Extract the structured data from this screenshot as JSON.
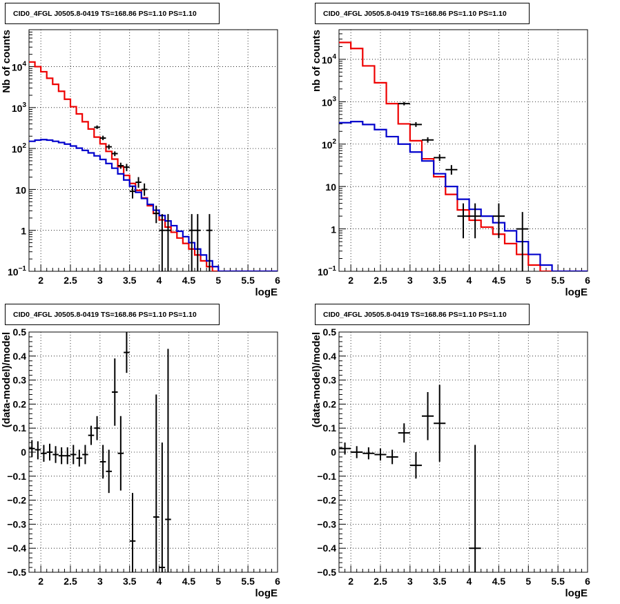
{
  "colors": {
    "data": "#000000",
    "total_model": "#ee0000",
    "source_model": "#0000cc",
    "grid": "#000000",
    "frame": "#000000"
  },
  "chart_data": [
    {
      "panel": "top-left",
      "type": "line",
      "title": "CID0_4FGL J0505.8-0419 TS=168.86 PS=1.10 PS=1.10",
      "xlabel": "logE",
      "ylabel": "Nb of counts",
      "yscale": "log",
      "xlim": [
        1.8,
        6
      ],
      "ylim": [
        0.1,
        80000
      ],
      "grid": true,
      "xticks": [
        2,
        2.5,
        3,
        3.5,
        4,
        4.5,
        5,
        5.5,
        6
      ],
      "xtick_labels": [
        "2",
        "2.5",
        "3",
        "3.5",
        "4",
        "4.5",
        "5",
        "5.5",
        "6"
      ],
      "yticks": [
        0.1,
        1,
        10,
        100,
        1000,
        10000
      ],
      "ytick_labels": [
        {
          "base": "10",
          "exp": "−1"
        },
        {
          "base": "1",
          "exp": ""
        },
        {
          "base": "10",
          "exp": ""
        },
        {
          "base": "10",
          "exp": "2"
        },
        {
          "base": "10",
          "exp": "3"
        },
        {
          "base": "10",
          "exp": "4"
        }
      ],
      "bin_edges": [
        1.8,
        1.9,
        2.0,
        2.1,
        2.2,
        2.3,
        2.4,
        2.5,
        2.6,
        2.7,
        2.8,
        2.9,
        3.0,
        3.1,
        3.2,
        3.3,
        3.4,
        3.5,
        3.6,
        3.7,
        3.8,
        3.9,
        4.0,
        4.1,
        4.2,
        4.3,
        4.4,
        4.5,
        4.6,
        4.7,
        4.8,
        4.9,
        5.0,
        5.1,
        5.2,
        5.3,
        5.4,
        5.5,
        5.6,
        5.7,
        5.8,
        5.9,
        6.0
      ],
      "series": [
        {
          "role": "total_model",
          "values": [
            13000,
            10000,
            7500,
            5200,
            3700,
            2500,
            1600,
            1050,
            700,
            450,
            300,
            190,
            130,
            85,
            55,
            36,
            22,
            14,
            9.5,
            6.2,
            4.0,
            2.6,
            1.8,
            1.2,
            0.9,
            0.65,
            0.48,
            0.35,
            0.25,
            0.18,
            0.13,
            0.1,
            0.1,
            0.1,
            0.1,
            0.1,
            0.1,
            0.1,
            0.1,
            0.1,
            0.1,
            0.1
          ]
        },
        {
          "role": "source_model",
          "values": [
            150,
            160,
            165,
            160,
            150,
            140,
            128,
            115,
            102,
            90,
            78,
            66,
            54,
            43,
            33,
            24,
            17,
            12,
            8.5,
            6.0,
            4.3,
            3.1,
            2.3,
            1.7,
            1.3,
            0.95,
            0.7,
            0.5,
            0.35,
            0.25,
            0.18,
            0.13,
            0.1,
            0.1,
            0.1,
            0.1,
            0.1,
            0.1,
            0.1,
            0.1,
            0.1,
            0.1
          ]
        }
      ],
      "points": [
        {
          "x": 2.95,
          "y": 330,
          "xerr": 0.05,
          "ylo": 300,
          "yhi": 365
        },
        {
          "x": 3.05,
          "y": 180,
          "xerr": 0.05,
          "ylo": 160,
          "yhi": 205
        },
        {
          "x": 3.15,
          "y": 110,
          "xerr": 0.05,
          "ylo": 95,
          "yhi": 125
        },
        {
          "x": 3.25,
          "y": 75,
          "xerr": 0.05,
          "ylo": 65,
          "yhi": 85
        },
        {
          "x": 3.35,
          "y": 38,
          "xerr": 0.05,
          "ylo": 32,
          "yhi": 45
        },
        {
          "x": 3.45,
          "y": 35,
          "xerr": 0.05,
          "ylo": 28,
          "yhi": 42
        },
        {
          "x": 3.55,
          "y": 9,
          "xerr": 0.05,
          "ylo": 6,
          "yhi": 12
        },
        {
          "x": 3.65,
          "y": 15,
          "xerr": 0.05,
          "ylo": 11,
          "yhi": 20
        },
        {
          "x": 3.75,
          "y": 10,
          "xerr": 0.05,
          "ylo": 7,
          "yhi": 14
        },
        {
          "x": 3.95,
          "y": 2.6,
          "xerr": 0.05,
          "ylo": 1.5,
          "yhi": 4
        },
        {
          "x": 4.05,
          "y": 1,
          "xerr": 0.05,
          "ylo": 0.1,
          "yhi": 2.5
        },
        {
          "x": 4.15,
          "y": 1,
          "xerr": 0.05,
          "ylo": 0.1,
          "yhi": 2.5
        },
        {
          "x": 4.55,
          "y": 1,
          "xerr": 0.05,
          "ylo": 0.1,
          "yhi": 2.5
        },
        {
          "x": 4.65,
          "y": 1,
          "xerr": 0.05,
          "ylo": 0.1,
          "yhi": 2.5
        },
        {
          "x": 4.85,
          "y": 1,
          "xerr": 0.05,
          "ylo": 0.1,
          "yhi": 2.5
        }
      ]
    },
    {
      "panel": "top-right",
      "type": "line",
      "title": "CID0_4FGL J0505.8-0419 TS=168.86 PS=1.10 PS=1.10",
      "xlabel": "logE",
      "ylabel": "nb of counts",
      "yscale": "log",
      "xlim": [
        1.8,
        6
      ],
      "ylim": [
        0.1,
        50000
      ],
      "grid": true,
      "xticks": [
        2,
        2.5,
        3,
        3.5,
        4,
        4.5,
        5,
        5.5,
        6
      ],
      "xtick_labels": [
        "2",
        "2.5",
        "3",
        "3.5",
        "4",
        "4.5",
        "5",
        "5.5",
        "6"
      ],
      "yticks": [
        0.1,
        1,
        10,
        100,
        1000,
        10000
      ],
      "ytick_labels": [
        {
          "base": "10",
          "exp": "−1"
        },
        {
          "base": "1",
          "exp": ""
        },
        {
          "base": "10",
          "exp": ""
        },
        {
          "base": "10",
          "exp": "2"
        },
        {
          "base": "10",
          "exp": "3"
        },
        {
          "base": "10",
          "exp": "4"
        }
      ],
      "bin_edges": [
        1.8,
        2.0,
        2.2,
        2.4,
        2.6,
        2.8,
        3.0,
        3.2,
        3.4,
        3.6,
        3.8,
        4.0,
        4.2,
        4.4,
        4.6,
        4.8,
        5.0,
        5.2,
        5.4,
        5.6,
        5.8,
        6.0
      ],
      "series": [
        {
          "role": "total_model",
          "values": [
            25000,
            18000,
            7000,
            2800,
            900,
            300,
            120,
            45,
            17,
            6.5,
            2.8,
            1.6,
            1.1,
            0.75,
            0.45,
            0.25,
            0.14,
            0.1,
            0.1,
            0.1,
            0.1
          ]
        },
        {
          "role": "source_model",
          "values": [
            320,
            340,
            290,
            220,
            150,
            100,
            65,
            40,
            20,
            10,
            5.0,
            2.9,
            2.0,
            1.4,
            0.9,
            0.5,
            0.25,
            0.14,
            0.1,
            0.1,
            0.1
          ]
        }
      ],
      "points": [
        {
          "x": 2.9,
          "y": 900,
          "xerr": 0.1,
          "ylo": 820,
          "yhi": 990
        },
        {
          "x": 3.1,
          "y": 290,
          "xerr": 0.1,
          "ylo": 255,
          "yhi": 330
        },
        {
          "x": 3.3,
          "y": 125,
          "xerr": 0.1,
          "ylo": 108,
          "yhi": 145
        },
        {
          "x": 3.5,
          "y": 48,
          "xerr": 0.1,
          "ylo": 40,
          "yhi": 57
        },
        {
          "x": 3.7,
          "y": 25,
          "xerr": 0.1,
          "ylo": 19,
          "yhi": 32
        },
        {
          "x": 3.9,
          "y": 2,
          "xerr": 0.1,
          "ylo": 0.6,
          "yhi": 4
        },
        {
          "x": 4.1,
          "y": 2,
          "xerr": 0.1,
          "ylo": 0.6,
          "yhi": 4
        },
        {
          "x": 4.5,
          "y": 2,
          "xerr": 0.1,
          "ylo": 0.6,
          "yhi": 4
        },
        {
          "x": 4.9,
          "y": 1,
          "xerr": 0.1,
          "ylo": 0.1,
          "yhi": 2.5
        }
      ]
    },
    {
      "panel": "bottom-left",
      "type": "scatter",
      "title": "CID0_4FGL J0505.8-0419 TS=168.86 PS=1.10 PS=1.10",
      "xlabel": "logE",
      "ylabel": "(data-model)/model",
      "yscale": "linear",
      "xlim": [
        1.8,
        6
      ],
      "ylim": [
        -0.5,
        0.5
      ],
      "grid": true,
      "xticks": [
        2,
        2.5,
        3,
        3.5,
        4,
        4.5,
        5,
        5.5,
        6
      ],
      "xtick_labels": [
        "2",
        "2.5",
        "3",
        "3.5",
        "4",
        "4.5",
        "5",
        "5.5",
        "6"
      ],
      "yticks": [
        -0.5,
        -0.4,
        -0.3,
        -0.2,
        -0.1,
        0,
        0.1,
        0.2,
        0.3,
        0.4,
        0.5
      ],
      "ytick_labels": [
        "−0.5",
        "−0.4",
        "−0.3",
        "−0.2",
        "−0.1",
        "0",
        "0.1",
        "0.2",
        "0.3",
        "0.4",
        "0.5"
      ],
      "points": [
        {
          "x": 1.85,
          "y": 0.015,
          "xerr": 0.05,
          "ylo": -0.02,
          "yhi": 0.05
        },
        {
          "x": 1.95,
          "y": 0.01,
          "xerr": 0.05,
          "ylo": -0.03,
          "yhi": 0.045
        },
        {
          "x": 2.05,
          "y": -0.005,
          "xerr": 0.05,
          "ylo": -0.04,
          "yhi": 0.03
        },
        {
          "x": 2.15,
          "y": 0.0,
          "xerr": 0.05,
          "ylo": -0.035,
          "yhi": 0.035
        },
        {
          "x": 2.25,
          "y": -0.01,
          "xerr": 0.05,
          "ylo": -0.045,
          "yhi": 0.025
        },
        {
          "x": 2.35,
          "y": -0.015,
          "xerr": 0.05,
          "ylo": -0.05,
          "yhi": 0.02
        },
        {
          "x": 2.45,
          "y": -0.015,
          "xerr": 0.05,
          "ylo": -0.05,
          "yhi": 0.02
        },
        {
          "x": 2.55,
          "y": -0.01,
          "xerr": 0.05,
          "ylo": -0.05,
          "yhi": 0.03
        },
        {
          "x": 2.65,
          "y": -0.025,
          "xerr": 0.05,
          "ylo": -0.06,
          "yhi": 0.01
        },
        {
          "x": 2.75,
          "y": -0.01,
          "xerr": 0.05,
          "ylo": -0.05,
          "yhi": 0.03
        },
        {
          "x": 2.85,
          "y": 0.07,
          "xerr": 0.05,
          "ylo": 0.03,
          "yhi": 0.11
        },
        {
          "x": 2.95,
          "y": 0.1,
          "xerr": 0.05,
          "ylo": 0.05,
          "yhi": 0.15
        },
        {
          "x": 3.05,
          "y": -0.04,
          "xerr": 0.05,
          "ylo": -0.11,
          "yhi": 0.03
        },
        {
          "x": 3.15,
          "y": -0.08,
          "xerr": 0.05,
          "ylo": -0.17,
          "yhi": 0.01
        },
        {
          "x": 3.25,
          "y": 0.25,
          "xerr": 0.05,
          "ylo": 0.11,
          "yhi": 0.39
        },
        {
          "x": 3.35,
          "y": -0.005,
          "xerr": 0.05,
          "ylo": -0.16,
          "yhi": 0.15
        },
        {
          "x": 3.45,
          "y": 0.415,
          "xerr": 0.05,
          "ylo": 0.33,
          "yhi": 0.5
        },
        {
          "x": 3.55,
          "y": -0.37,
          "xerr": 0.05,
          "ylo": -0.5,
          "yhi": -0.17
        },
        {
          "x": 3.95,
          "y": -0.27,
          "xerr": 0.05,
          "ylo": -0.5,
          "yhi": 0.24
        },
        {
          "x": 4.05,
          "y": -0.48,
          "xerr": 0.05,
          "ylo": -0.5,
          "yhi": 0.04
        },
        {
          "x": 4.15,
          "y": -0.28,
          "xerr": 0.05,
          "ylo": -0.5,
          "yhi": 0.43
        }
      ]
    },
    {
      "panel": "bottom-right",
      "type": "scatter",
      "title": "CID0_4FGL J0505.8-0419 TS=168.86 PS=1.10 PS=1.10",
      "xlabel": "logE",
      "ylabel": "(data-model)/model",
      "yscale": "linear",
      "xlim": [
        1.8,
        6
      ],
      "ylim": [
        -0.5,
        0.5
      ],
      "grid": true,
      "xticks": [
        2,
        2.5,
        3,
        3.5,
        4,
        4.5,
        5,
        5.5,
        6
      ],
      "xtick_labels": [
        "2",
        "2.5",
        "3",
        "3.5",
        "4",
        "4.5",
        "5",
        "5.5",
        "6"
      ],
      "yticks": [
        -0.5,
        -0.4,
        -0.3,
        -0.2,
        -0.1,
        0,
        0.1,
        0.2,
        0.3,
        0.4,
        0.5
      ],
      "ytick_labels": [
        "−0.5",
        "−0.4",
        "−0.3",
        "−0.2",
        "−0.1",
        "0",
        "0.1",
        "0.2",
        "0.3",
        "0.4",
        "0.5"
      ],
      "points": [
        {
          "x": 1.9,
          "y": 0.015,
          "xerr": 0.1,
          "ylo": -0.01,
          "yhi": 0.04
        },
        {
          "x": 2.1,
          "y": 0.0,
          "xerr": 0.1,
          "ylo": -0.025,
          "yhi": 0.025
        },
        {
          "x": 2.3,
          "y": -0.005,
          "xerr": 0.1,
          "ylo": -0.03,
          "yhi": 0.02
        },
        {
          "x": 2.5,
          "y": -0.01,
          "xerr": 0.1,
          "ylo": -0.035,
          "yhi": 0.015
        },
        {
          "x": 2.7,
          "y": -0.02,
          "xerr": 0.1,
          "ylo": -0.05,
          "yhi": 0.01
        },
        {
          "x": 2.9,
          "y": 0.08,
          "xerr": 0.1,
          "ylo": 0.04,
          "yhi": 0.12
        },
        {
          "x": 3.1,
          "y": -0.055,
          "xerr": 0.1,
          "ylo": -0.11,
          "yhi": 0.0
        },
        {
          "x": 3.3,
          "y": 0.15,
          "xerr": 0.1,
          "ylo": 0.05,
          "yhi": 0.25
        },
        {
          "x": 3.5,
          "y": 0.12,
          "xerr": 0.1,
          "ylo": -0.04,
          "yhi": 0.28
        },
        {
          "x": 4.1,
          "y": -0.4,
          "xerr": 0.1,
          "ylo": -0.5,
          "yhi": 0.03
        }
      ]
    }
  ]
}
